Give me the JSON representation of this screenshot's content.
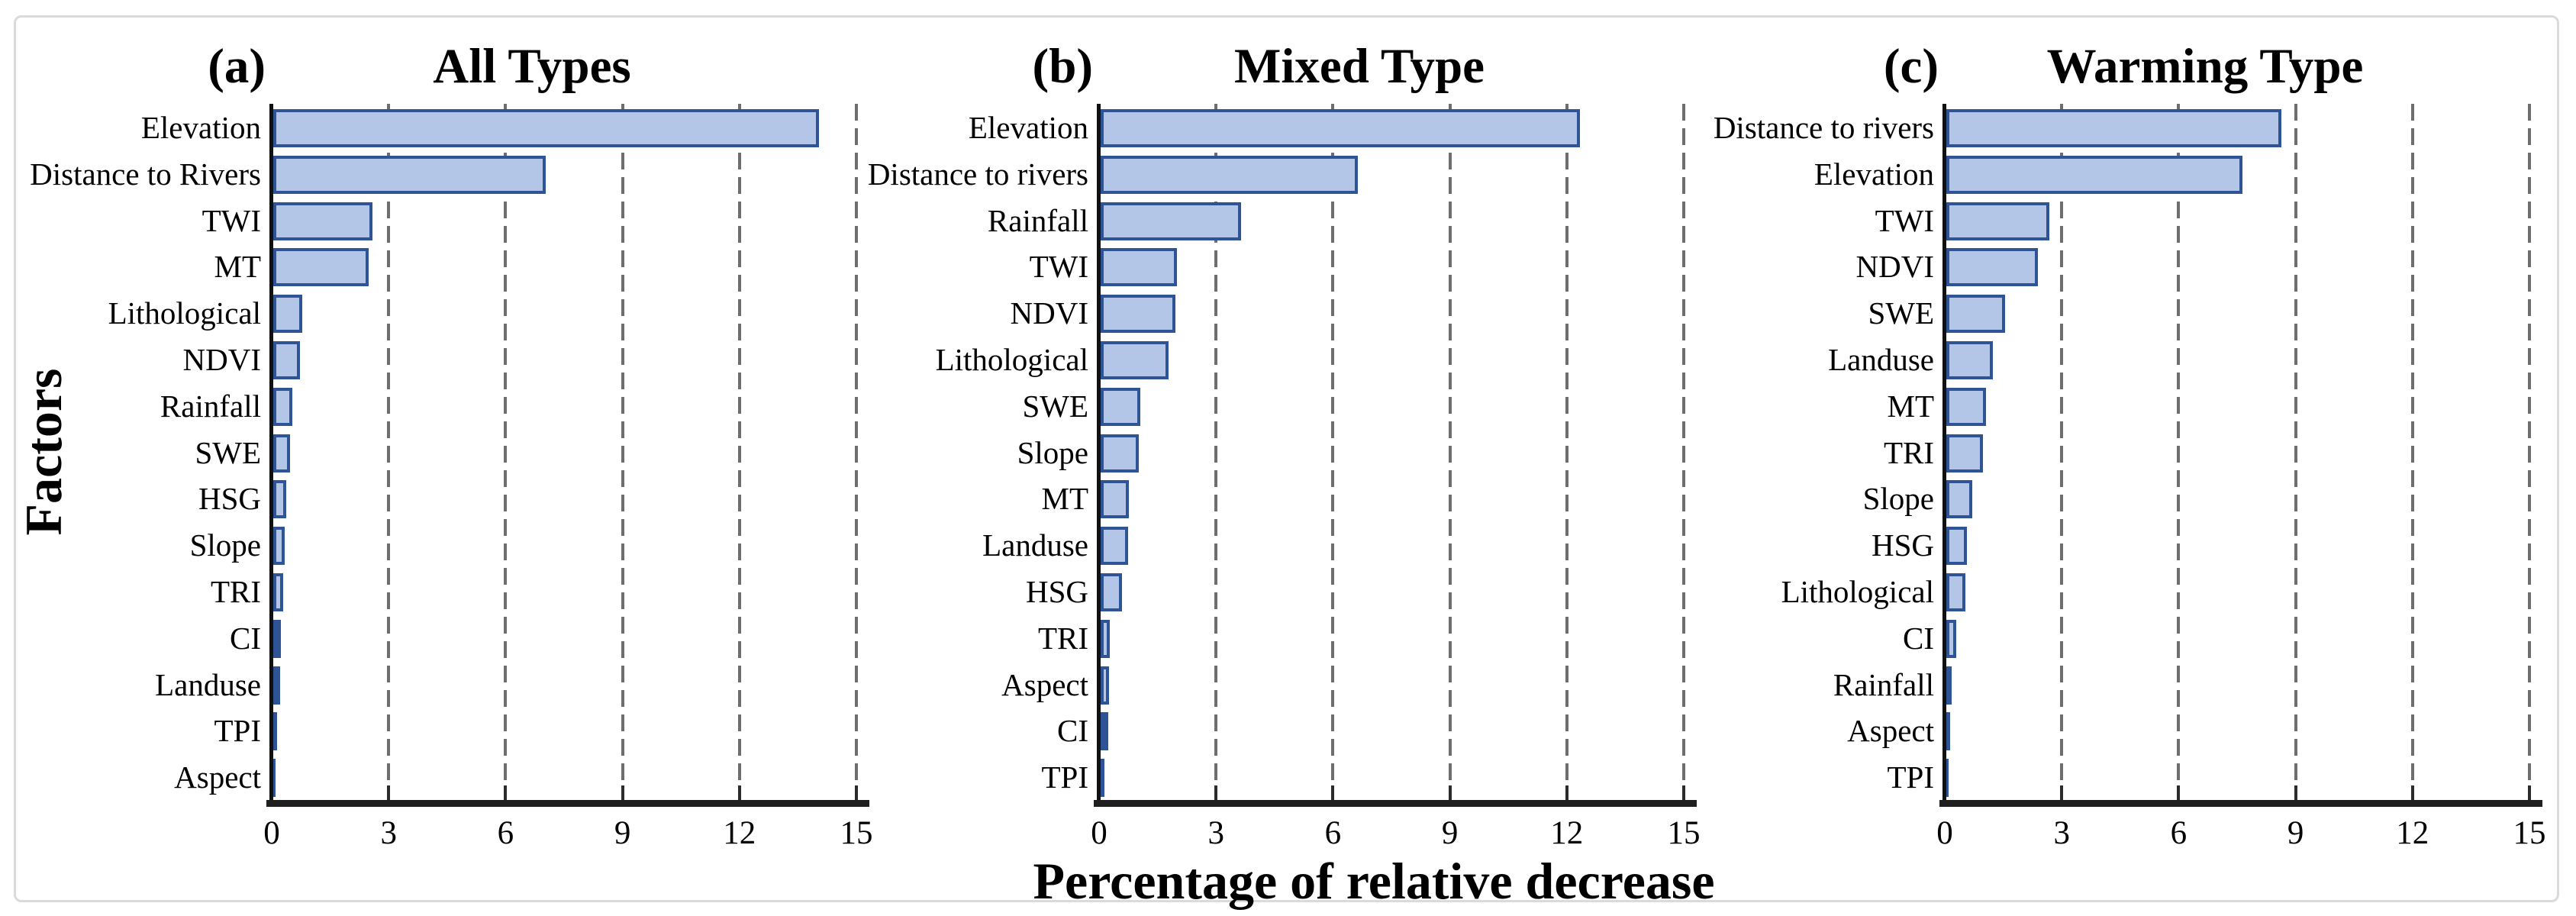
{
  "figure": {
    "ylabel": "Factors",
    "xlabel": "Percentage of relative decrease"
  },
  "colors": {
    "bar_fill": "#b4c6e7",
    "bar_border": "#2f5496",
    "grid": "#6e6e6e",
    "axis": "#1f1f1f",
    "spine": "#111111",
    "frame": "#dadada",
    "text": "#000000"
  },
  "chart_data": [
    {
      "type": "bar",
      "orientation": "horizontal",
      "panel_label": "(a)",
      "title": "All Types",
      "xlabel": "Percentage of relative decrease",
      "ylabel": "Factors",
      "xlim": [
        0,
        15
      ],
      "xticks": [
        0,
        3,
        6,
        9,
        12,
        15
      ],
      "grid": "vertical-dashed",
      "categories": [
        "Elevation",
        "Distance to Rivers",
        "TWI",
        "MT",
        "Lithological",
        "NDVI",
        "Rainfall",
        "SWE",
        "HSG",
        "Slope",
        "TRI",
        "CI",
        "Landuse",
        "TPI",
        "Aspect"
      ],
      "values": [
        14.0,
        7.0,
        2.55,
        2.45,
        0.75,
        0.68,
        0.48,
        0.43,
        0.33,
        0.3,
        0.26,
        0.2,
        0.18,
        0.09,
        0.02
      ]
    },
    {
      "type": "bar",
      "orientation": "horizontal",
      "panel_label": "(b)",
      "title": "Mixed Type",
      "xlabel": "Percentage of relative decrease",
      "ylabel": "Factors",
      "xlim": [
        0,
        15
      ],
      "xticks": [
        0,
        3,
        6,
        9,
        12,
        15
      ],
      "grid": "vertical-dashed",
      "categories": [
        "Elevation",
        "Distance to rivers",
        "Rainfall",
        "TWI",
        "NDVI",
        "Lithological",
        "SWE",
        "Slope",
        "MT",
        "Landuse",
        "HSG",
        "TRI",
        "Aspect",
        "CI",
        "TPI"
      ],
      "values": [
        12.3,
        6.6,
        3.6,
        1.95,
        1.92,
        1.75,
        1.02,
        0.98,
        0.73,
        0.7,
        0.55,
        0.23,
        0.21,
        0.19,
        0.1
      ]
    },
    {
      "type": "bar",
      "orientation": "horizontal",
      "panel_label": "(c)",
      "title": "Warming Type",
      "xlabel": "Percentage of relative decrease",
      "ylabel": "Factors",
      "xlim": [
        0,
        15
      ],
      "xticks": [
        0,
        3,
        6,
        9,
        12,
        15
      ],
      "grid": "vertical-dashed",
      "categories": [
        "Distance to rivers",
        "Elevation",
        "TWI",
        "NDVI",
        "SWE",
        "Landuse",
        "MT",
        "TRI",
        "Slope",
        "HSG",
        "Lithological",
        "CI",
        "Rainfall",
        "Aspect",
        "TPI"
      ],
      "values": [
        8.6,
        7.6,
        2.65,
        2.35,
        1.5,
        1.2,
        1.02,
        0.94,
        0.66,
        0.52,
        0.48,
        0.25,
        0.13,
        0.1,
        0.04
      ]
    }
  ]
}
